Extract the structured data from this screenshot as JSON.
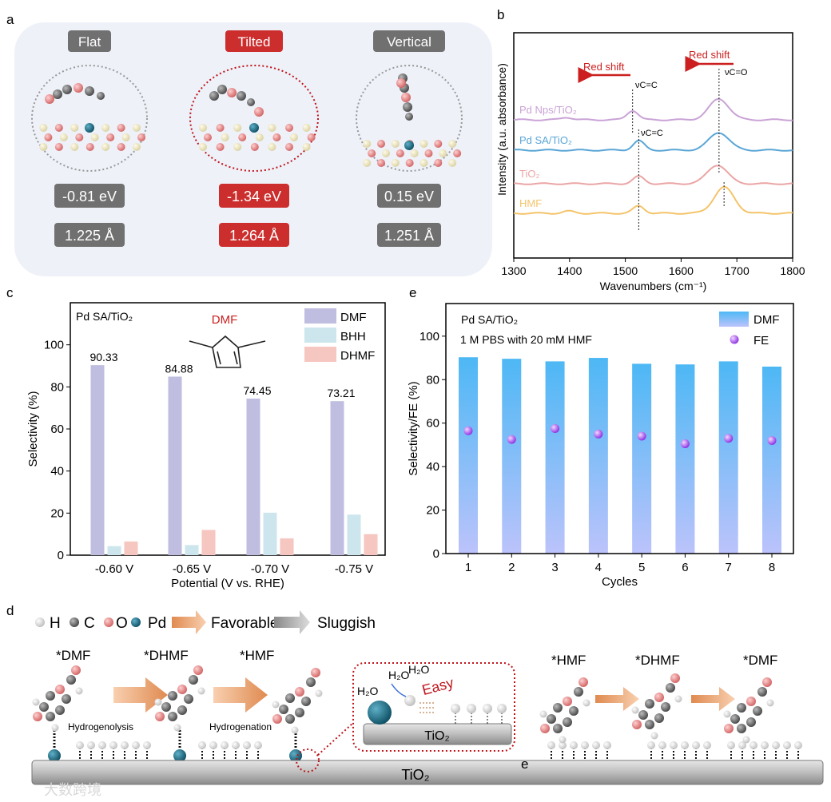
{
  "panel_labels": {
    "a": "a",
    "b": "b",
    "c": "c",
    "d": "d",
    "e": "e"
  },
  "panel_a": {
    "configs": [
      {
        "label": "Flat",
        "energy": "-0.81 eV",
        "bond": "1.225 Å",
        "highlight": false
      },
      {
        "label": "Tilted",
        "energy": "-1.34 eV",
        "bond": "1.264 Å",
        "highlight": true
      },
      {
        "label": "Vertical",
        "energy": "0.15 eV",
        "bond": "1.251 Å",
        "highlight": false
      }
    ],
    "colors": {
      "gray": "#707070",
      "red": "#cc2e2e",
      "bg": "#eef1f8"
    }
  },
  "chart_data": [
    {
      "id": "b",
      "type": "line",
      "xlabel": "Wavenumbers (cm⁻¹)",
      "ylabel": "Intensity (a.u. absorbance)",
      "xlim": [
        1300,
        1800
      ],
      "xticks": [
        "1300",
        "1400",
        "1500",
        "1600",
        "1700",
        "1800"
      ],
      "series": [
        {
          "name": "Pd Nps/TiO₂",
          "color": "#c9a3d6",
          "peaks": [
            [
              1395,
              0.12
            ],
            [
              1513,
              0.45
            ],
            [
              1668,
              1.0
            ]
          ]
        },
        {
          "name": "Pd SA/TiO₂",
          "color": "#5aa6d6",
          "peaks": [
            [
              1524,
              0.45
            ],
            [
              1668,
              0.85
            ]
          ]
        },
        {
          "name": "TiO₂",
          "color": "#eba5a5",
          "peaks": [
            [
              1524,
              0.35
            ],
            [
              1665,
              0.9
            ]
          ]
        },
        {
          "name": "HMF",
          "color": "#f4c46a",
          "peaks": [
            [
              1398,
              0.1
            ],
            [
              1524,
              0.35
            ],
            [
              1677,
              1.25
            ]
          ]
        }
      ],
      "annotations": {
        "red_shift_1": "Red shift",
        "red_shift_2": "Red shift",
        "v_cc_1": "νC=C",
        "v_cc_2": "νC=C",
        "v_co": "νC=O"
      },
      "marker_lines_wavenumber": [
        1513,
        1524,
        1668,
        1677
      ]
    },
    {
      "id": "c",
      "type": "bar",
      "title": "Pd SA/TiO₂",
      "structure_label": "DMF",
      "xlabel": "Potential (V vs. RHE)",
      "ylabel": "Selectivity (%)",
      "ylim": [
        0,
        120
      ],
      "yticks": [
        "0",
        "20",
        "40",
        "60",
        "80",
        "100"
      ],
      "categories": [
        "-0.60 V",
        "-0.65 V",
        "-0.70 V",
        "-0.75 V"
      ],
      "series": [
        {
          "name": "DMF",
          "color": "#bfbde0",
          "values": [
            90.33,
            84.88,
            74.45,
            73.21
          ],
          "labels": [
            "90.33",
            "84.88",
            "74.45",
            "73.21"
          ]
        },
        {
          "name": "BHH",
          "color": "#cde6ee",
          "values": [
            4.3,
            4.8,
            20.2,
            19.3
          ]
        },
        {
          "name": "DHMF",
          "color": "#f6c6c0",
          "values": [
            6.5,
            12.0,
            8.0,
            10.0
          ]
        }
      ]
    },
    {
      "id": "e",
      "type": "bar",
      "title": "Pd SA/TiO₂",
      "subtitle": "1 M PBS with 20 mM HMF",
      "xlabel": "Cycles",
      "ylabel": "Selectivity/FE (%)",
      "ylim": [
        0,
        115
      ],
      "yticks": [
        "0",
        "20",
        "40",
        "60",
        "80",
        "100"
      ],
      "categories": [
        "1",
        "2",
        "3",
        "4",
        "5",
        "6",
        "7",
        "8"
      ],
      "series": [
        {
          "name": "DMF",
          "type": "bar",
          "color": "#4db8f5",
          "values": [
            90.3,
            89.6,
            88.4,
            90.0,
            87.3,
            87.0,
            88.4,
            86.0
          ]
        },
        {
          "name": "FE",
          "type": "scatter",
          "color": "#9a3de6",
          "values": [
            56.5,
            52.5,
            57.5,
            55.0,
            54.0,
            50.5,
            53.0,
            52.0
          ]
        }
      ]
    }
  ],
  "panel_d": {
    "legend": {
      "h": "H",
      "c": "C",
      "o": "O",
      "pd": "Pd",
      "favorable": "Favorable",
      "sluggish": "Sluggish"
    },
    "species": {
      "dmf": "*DMF",
      "dhmf": "*DHMF",
      "hmf": "*HMF",
      "hmf2": "*HMF",
      "dhmf2": "*DHMF",
      "dmf2": "*DMF"
    },
    "steps": {
      "hydrogenolysis": "Hydrogenolysis",
      "hydrogenation": "Hydrogenation"
    },
    "inset": {
      "h2o_1": "H₂O",
      "h2o_2": "H₂O",
      "h2o_3": "H₂O",
      "easy": "Easy",
      "support": "TiO₂"
    },
    "support": "TiO₂",
    "electron": "e",
    "watermark": "大数跨境"
  }
}
